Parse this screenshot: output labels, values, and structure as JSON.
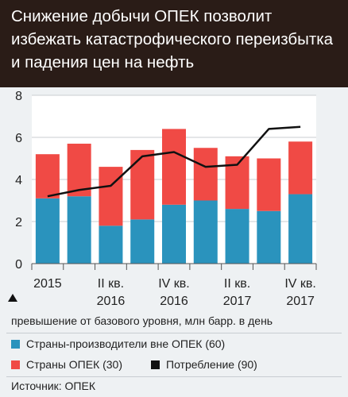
{
  "title": "Снижение добычи ОПЕК позволит избежать катастрофического переизбытка и падения цен на нефть",
  "note": "превышение от базового уровня, млн барр. в день",
  "source": "Источник: ОПЕК",
  "colors": {
    "nonopec": "#2a93bd",
    "opec": "#f04a45",
    "consumption": "#111111",
    "header": "#2a1c17"
  },
  "chart_data": {
    "type": "bar",
    "stacked": true,
    "categories": [
      "2015",
      "",
      "II кв.\n2016",
      "",
      "IV кв.\n2016",
      "",
      "II кв.\n2017",
      "",
      "IV кв.\n2017"
    ],
    "tick_labels": [
      {
        "line1": "2015",
        "line2": ""
      },
      {
        "line1": "II кв.",
        "line2": "2016"
      },
      {
        "line1": "IV кв.",
        "line2": "2016"
      },
      {
        "line1": "II кв.",
        "line2": "2017"
      },
      {
        "line1": "IV кв.",
        "line2": "2017"
      }
    ],
    "series": [
      {
        "name": "Страны-производители вне ОПЕК (60)",
        "type": "bar",
        "values": [
          3.1,
          3.2,
          1.8,
          2.1,
          2.8,
          3.0,
          2.6,
          2.5,
          3.3
        ]
      },
      {
        "name": "Страны ОПЕК (30)",
        "type": "bar",
        "values": [
          2.1,
          2.5,
          2.8,
          3.3,
          3.6,
          2.5,
          2.5,
          2.5,
          2.5
        ]
      },
      {
        "name": "Потребление (90)",
        "type": "line",
        "values": [
          3.2,
          3.5,
          3.7,
          5.1,
          5.3,
          4.6,
          4.7,
          6.4,
          6.5
        ]
      }
    ],
    "ylim": [
      0,
      8
    ],
    "yticks": [
      0,
      2,
      4,
      6,
      8
    ],
    "grid": true,
    "legend": "bottom"
  }
}
